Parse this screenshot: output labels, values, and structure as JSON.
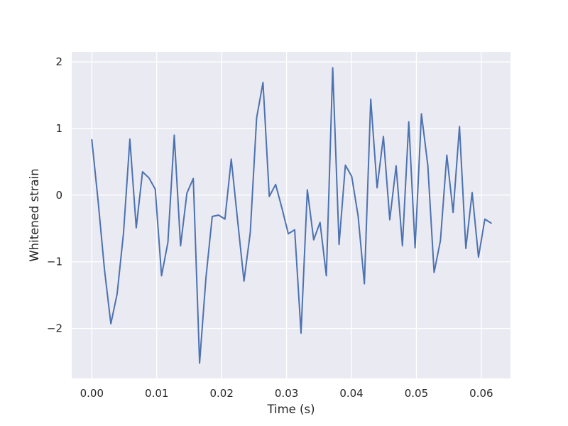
{
  "chart_data": {
    "type": "line",
    "title": "",
    "xlabel": "Time (s)",
    "ylabel": "Whitened strain",
    "xlim": [
      -0.0031,
      0.0645
    ],
    "ylim": [
      -2.75,
      2.15
    ],
    "xticks": [
      0.0,
      0.01,
      0.02,
      0.03,
      0.04,
      0.05,
      0.06
    ],
    "xtick_labels": [
      "0.00",
      "0.01",
      "0.02",
      "0.03",
      "0.04",
      "0.05",
      "0.06"
    ],
    "yticks": [
      -2,
      -1,
      0,
      1,
      2
    ],
    "ytick_labels": [
      "−2",
      "−1",
      "0",
      "1",
      "2"
    ],
    "grid": true,
    "legend": "none",
    "colors": {
      "background": "#eaeaf2",
      "grid": "#ffffff",
      "line": "#4c72b0",
      "text": "#262626"
    },
    "series": [
      {
        "x": [
          0.0,
          0.00098,
          0.00195,
          0.00293,
          0.0039,
          0.00488,
          0.00586,
          0.00684,
          0.00781,
          0.00879,
          0.00977,
          0.01074,
          0.01172,
          0.0127,
          0.01367,
          0.01465,
          0.01563,
          0.0166,
          0.01758,
          0.01855,
          0.01953,
          0.02051,
          0.02148,
          0.02246,
          0.02344,
          0.02441,
          0.02539,
          0.02637,
          0.02734,
          0.02832,
          0.0293,
          0.03027,
          0.03125,
          0.03223,
          0.0332,
          0.03418,
          0.03516,
          0.03613,
          0.03711,
          0.03809,
          0.03906,
          0.04004,
          0.04102,
          0.04199,
          0.04297,
          0.04395,
          0.04492,
          0.0459,
          0.04688,
          0.04785,
          0.04883,
          0.0498,
          0.05078,
          0.05176,
          0.05273,
          0.05371,
          0.05469,
          0.05566,
          0.05664,
          0.05762,
          0.05859,
          0.05957,
          0.06055,
          0.06152
        ],
        "values": [
          0.83,
          -0.1,
          -1.12,
          -1.93,
          -1.48,
          -0.57,
          0.84,
          -0.49,
          0.35,
          0.26,
          0.09,
          -1.21,
          -0.71,
          0.9,
          -0.76,
          0.03,
          0.25,
          -2.52,
          -1.24,
          -0.32,
          -0.3,
          -0.36,
          0.54,
          -0.38,
          -1.29,
          -0.56,
          1.16,
          1.69,
          -0.02,
          0.16,
          -0.2,
          -0.58,
          -0.52,
          -2.07,
          0.08,
          -0.67,
          -0.41,
          -1.21,
          1.91,
          -0.74,
          0.45,
          0.28,
          -0.31,
          -1.33,
          1.44,
          0.11,
          0.88,
          -0.37,
          0.44,
          -0.76,
          1.1,
          -0.79,
          1.22,
          0.45,
          -1.16,
          -0.68,
          0.6,
          -0.26,
          1.03,
          -0.8,
          0.04,
          -0.93,
          -0.36,
          -0.42
        ]
      }
    ]
  }
}
